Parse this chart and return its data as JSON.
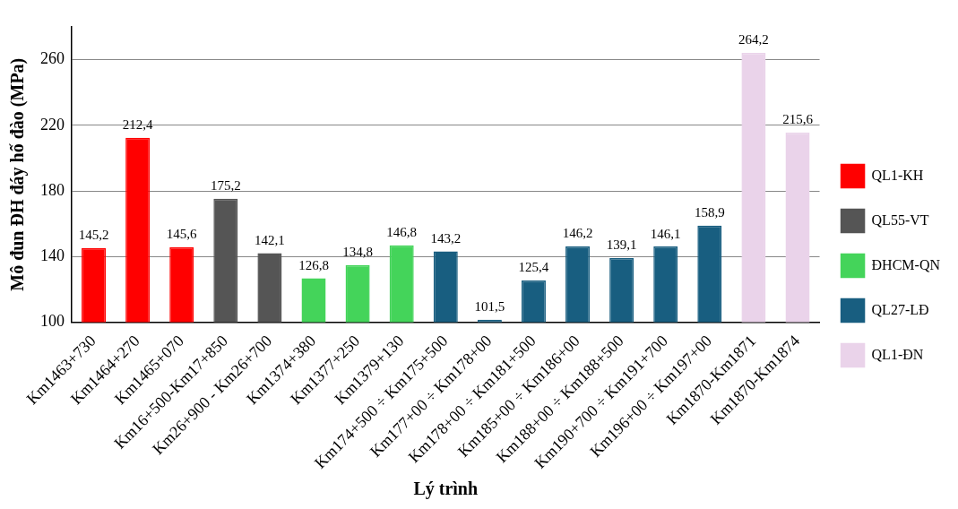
{
  "chart_data": {
    "type": "bar",
    "xlabel": "Lý trình",
    "ylabel": "Mô đun ĐH đáy hố đào (MPa)",
    "categories": [
      "Km1463+730",
      "Km1464+270",
      "Km1465+070",
      "Km16+500-Km17+850",
      "Km26+900 - Km26+700",
      "Km1374+380",
      "Km1377+250",
      "Km1379+130",
      "Km174+500 ÷ Km175+500",
      "Km177+00 ÷ Km178+00",
      "Km178+00 ÷ Km181+500",
      "Km185+00 ÷ Km186+00",
      "Km188+00 ÷ Km188+500",
      "Km190+700 ÷ Km191+700",
      "Km196+00 ÷ Km197+00",
      "Km1870-Km1871",
      "Km1870-Km1874"
    ],
    "series": [
      {
        "name": "QL1-KH",
        "color": "#ff0000",
        "values": [
          145.2,
          212.4,
          145.6,
          null,
          null,
          null,
          null,
          null,
          null,
          null,
          null,
          null,
          null,
          null,
          null,
          null,
          null
        ],
        "value_labels": [
          "145,2",
          "212,4",
          "145,6",
          null,
          null,
          null,
          null,
          null,
          null,
          null,
          null,
          null,
          null,
          null,
          null,
          null,
          null
        ]
      },
      {
        "name": "QL55-VT",
        "color": "#555555",
        "values": [
          null,
          null,
          null,
          175.2,
          142.1,
          null,
          null,
          null,
          null,
          null,
          null,
          null,
          null,
          null,
          null,
          null,
          null
        ],
        "value_labels": [
          null,
          null,
          null,
          "175,2",
          "142,1",
          null,
          null,
          null,
          null,
          null,
          null,
          null,
          null,
          null,
          null,
          null,
          null
        ]
      },
      {
        "name": "ĐHCM-QN",
        "color": "#44d45a",
        "values": [
          null,
          null,
          null,
          null,
          null,
          126.8,
          134.8,
          146.8,
          null,
          null,
          null,
          null,
          null,
          null,
          null,
          null,
          null
        ],
        "value_labels": [
          null,
          null,
          null,
          null,
          null,
          "126,8",
          "134,8",
          "146,8",
          null,
          null,
          null,
          null,
          null,
          null,
          null,
          null,
          null
        ]
      },
      {
        "name": "QL27-LĐ",
        "color": "#185e80",
        "values": [
          null,
          null,
          null,
          null,
          null,
          null,
          null,
          null,
          143.2,
          101.5,
          125.4,
          146.2,
          139.1,
          146.1,
          158.9,
          null,
          null
        ],
        "value_labels": [
          null,
          null,
          null,
          null,
          null,
          null,
          null,
          null,
          "143,2",
          "101,5",
          "125,4",
          "146,2",
          "139,1",
          "146,1",
          "158,9",
          null,
          null
        ]
      },
      {
        "name": "QL1-ĐN",
        "color": "#ead3ea",
        "values": [
          null,
          null,
          null,
          null,
          null,
          null,
          null,
          null,
          null,
          null,
          null,
          null,
          null,
          null,
          null,
          264.2,
          215.6
        ],
        "value_labels": [
          null,
          null,
          null,
          null,
          null,
          null,
          null,
          null,
          null,
          null,
          null,
          null,
          null,
          null,
          null,
          "264,2",
          "215,6"
        ]
      }
    ],
    "ylim": [
      100,
      280
    ],
    "yticks": [
      100,
      140,
      180,
      220,
      260
    ],
    "grid": "y",
    "legend": "right"
  }
}
